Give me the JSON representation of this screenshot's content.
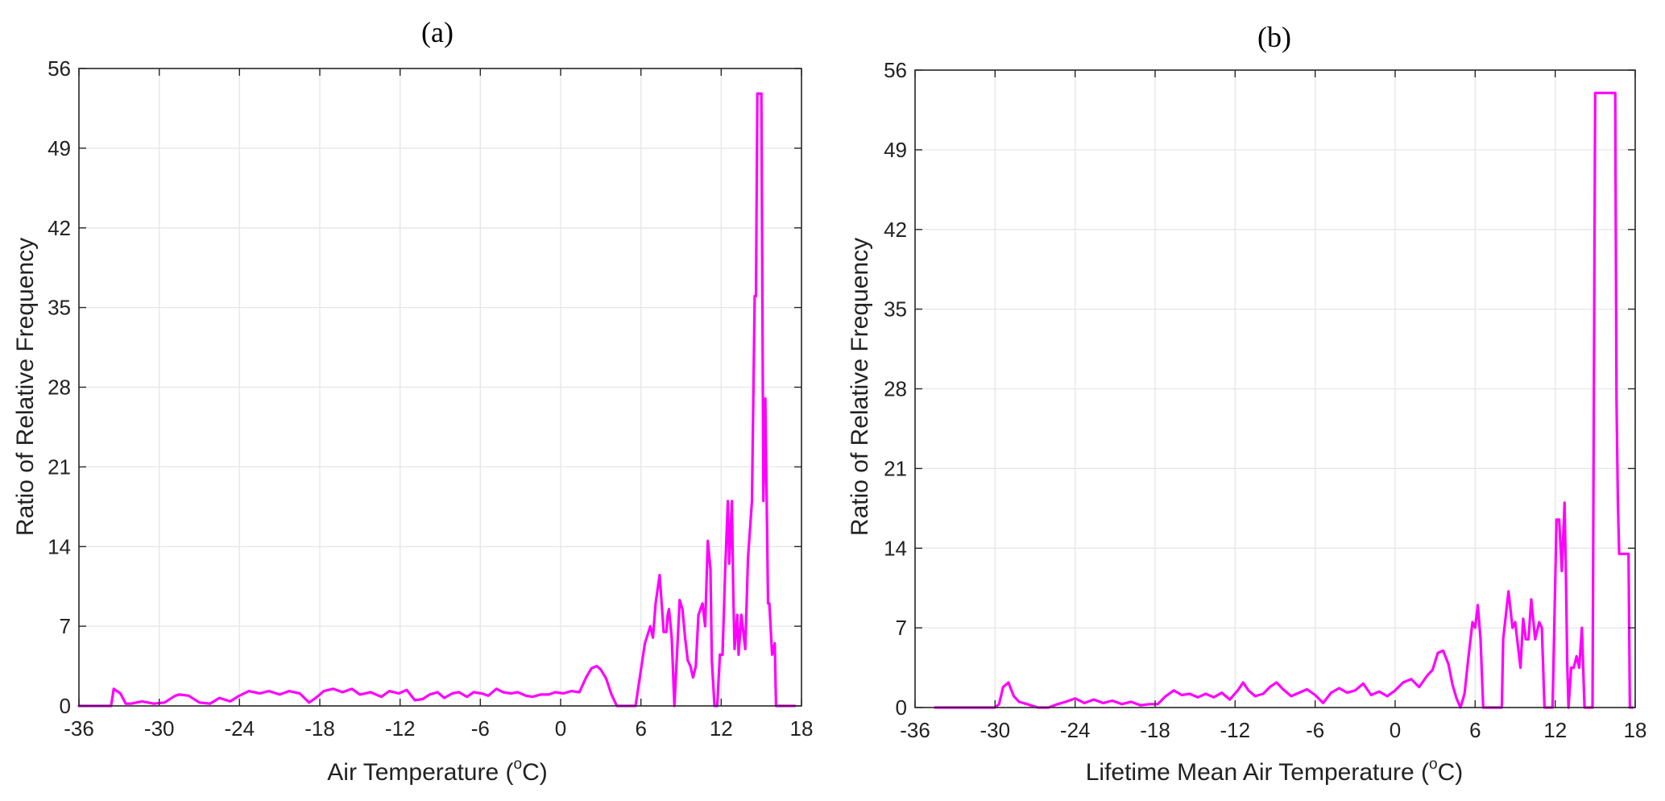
{
  "chart_data": [
    {
      "type": "line",
      "title": "(a)",
      "xlabel": "Air Temperature",
      "xlabel_unit": "(oC)",
      "ylabel": "Ratio of Relative Frequency",
      "xlim": [
        -36,
        18
      ],
      "ylim": [
        0,
        56
      ],
      "xticks": [
        -36,
        -30,
        -24,
        -18,
        -12,
        -6,
        0,
        6,
        12,
        18
      ],
      "yticks": [
        0,
        7,
        14,
        21,
        28,
        35,
        42,
        49,
        56
      ],
      "grid": true,
      "color": "#ff00ff",
      "series": [
        {
          "x": [
            -36,
            -33.6,
            -33.4,
            -32.9,
            -32.5,
            -32.1,
            -31.3,
            -30.4,
            -29.6,
            -28.8,
            -28.5,
            -27.8,
            -27.0,
            -26.2,
            -25.5,
            -24.7,
            -24.0,
            -23.3,
            -22.5,
            -21.8,
            -21.0,
            -20.3,
            -19.5,
            -18.8,
            -18.3,
            -17.7,
            -17.0,
            -16.3,
            -15.6,
            -15.0,
            -14.2,
            -13.4,
            -12.8,
            -12.1,
            -11.5,
            -10.9,
            -10.3,
            -9.8,
            -9.2,
            -8.7,
            -8.1,
            -7.6,
            -7.0,
            -6.5,
            -5.9,
            -5.4,
            -4.8,
            -4.3,
            -3.7,
            -3.2,
            -2.6,
            -2.1,
            -1.5,
            -0.9,
            -0.4,
            0.2,
            0.8,
            1.4,
            1.9,
            2.3,
            2.7,
            3.0,
            3.4,
            3.8,
            4.2,
            4.6,
            5.0,
            5.3,
            5.6,
            6.3,
            6.7,
            6.9,
            7.1,
            7.4,
            7.7,
            7.9,
            8.0,
            8.1,
            8.3,
            8.5,
            8.9,
            9.1,
            9.3,
            9.5,
            9.7,
            9.9,
            10.1,
            10.3,
            10.6,
            10.8,
            11.0,
            11.2,
            11.3,
            11.5,
            11.7,
            11.9,
            12.1,
            12.3,
            12.5,
            12.6,
            12.8,
            12.9,
            13.0,
            13.2,
            13.3,
            13.5,
            13.8,
            14.0,
            14.3,
            14.5,
            14.6,
            14.7,
            14.8,
            14.9,
            15.0,
            15.15,
            15.3,
            15.4,
            15.5,
            15.6,
            15.8,
            16.0,
            16.1,
            16.2,
            16.3,
            16.6,
            17.0,
            17.5
          ],
          "y": [
            0,
            0,
            1.5,
            1.1,
            0.2,
            0.2,
            0.4,
            0.2,
            0.3,
            0.9,
            1.0,
            0.9,
            0.3,
            0.2,
            0.7,
            0.4,
            0.9,
            1.3,
            1.1,
            1.3,
            1.0,
            1.3,
            1.1,
            0.3,
            0.7,
            1.3,
            1.5,
            1.2,
            1.5,
            1.0,
            1.2,
            0.8,
            1.3,
            1.1,
            1.4,
            0.5,
            0.6,
            1.0,
            1.2,
            0.7,
            1.1,
            1.2,
            0.8,
            1.2,
            1.1,
            0.9,
            1.5,
            1.2,
            1.1,
            1.2,
            0.9,
            0.8,
            1.0,
            1.0,
            1.2,
            1.1,
            1.3,
            1.2,
            2.5,
            3.3,
            3.5,
            3.2,
            2.4,
            1.0,
            0,
            0,
            0,
            0,
            0,
            5.5,
            7.0,
            6.0,
            9.0,
            11.5,
            6.5,
            6.5,
            8.0,
            8.5,
            6.0,
            0,
            9.3,
            8.5,
            6.0,
            4.0,
            3.5,
            2.5,
            3.5,
            8.0,
            9.0,
            7.0,
            14.5,
            12.0,
            4.0,
            0,
            0,
            4.5,
            4.5,
            12.0,
            18.0,
            12.5,
            18.0,
            10.0,
            5.0,
            8.0,
            4.5,
            8.0,
            5.0,
            13.0,
            18.0,
            36.0,
            36.0,
            53.8,
            53.8,
            53.8,
            53.8,
            18.0,
            27.0,
            18.0,
            9.0,
            9.0,
            4.5,
            5.5,
            0,
            0,
            0,
            0,
            0,
            0
          ]
        }
      ]
    },
    {
      "type": "line",
      "title": "(b)",
      "xlabel": "Lifetime Mean Air Temperature",
      "xlabel_unit": "(oC)",
      "ylabel": "Ratio of Relative Frequency",
      "xlim": [
        -36,
        18
      ],
      "ylim": [
        0,
        56
      ],
      "xticks": [
        -36,
        -30,
        -24,
        -18,
        -12,
        -6,
        0,
        6,
        12,
        18
      ],
      "yticks": [
        0,
        7,
        14,
        21,
        28,
        35,
        42,
        49,
        56
      ],
      "grid": true,
      "color": "#ff00ff",
      "series": [
        {
          "x": [
            -34.5,
            -30.0,
            -29.7,
            -29.4,
            -29.0,
            -28.6,
            -28.2,
            -27.6,
            -26.8,
            -26.0,
            -25.3,
            -24.7,
            -24.0,
            -23.3,
            -22.6,
            -21.9,
            -21.2,
            -20.5,
            -19.8,
            -19.1,
            -18.4,
            -17.8,
            -17.2,
            -16.6,
            -16.0,
            -15.4,
            -14.8,
            -14.2,
            -13.6,
            -13.0,
            -12.4,
            -11.8,
            -11.4,
            -11.0,
            -10.5,
            -9.9,
            -9.4,
            -8.9,
            -8.4,
            -7.8,
            -7.2,
            -6.6,
            -6.0,
            -5.4,
            -4.8,
            -4.2,
            -3.6,
            -3.0,
            -2.4,
            -1.8,
            -1.2,
            -0.6,
            0.0,
            0.6,
            1.2,
            1.8,
            2.4,
            2.8,
            3.2,
            3.6,
            4.0,
            4.3,
            4.6,
            4.9,
            5.2,
            5.5,
            5.8,
            6.0,
            6.2,
            6.4,
            6.6,
            7.0,
            7.4,
            8.0,
            8.1,
            8.5,
            8.8,
            9.0,
            9.2,
            9.4,
            9.6,
            9.8,
            10.0,
            10.2,
            10.5,
            10.8,
            11.0,
            11.2,
            11.5,
            11.8,
            12.0,
            12.1,
            12.3,
            12.5,
            12.7,
            12.8,
            12.9,
            13.0,
            13.2,
            13.4,
            13.6,
            13.8,
            14.0,
            14.2,
            14.5,
            14.7,
            14.8,
            15.0,
            15.5,
            16.0,
            16.5,
            16.6,
            16.7,
            16.8,
            16.9,
            17.0,
            17.5,
            17.6,
            17.8
          ],
          "y": [
            0,
            0,
            0.3,
            1.8,
            2.2,
            1.0,
            0.5,
            0.3,
            0,
            0,
            0.3,
            0.5,
            0.8,
            0.4,
            0.7,
            0.4,
            0.6,
            0.3,
            0.5,
            0.2,
            0.3,
            0.3,
            1.0,
            1.5,
            1.1,
            1.2,
            0.9,
            1.2,
            0.9,
            1.3,
            0.7,
            1.5,
            2.2,
            1.5,
            1.0,
            1.2,
            1.8,
            2.2,
            1.6,
            1.0,
            1.3,
            1.6,
            1.1,
            0.4,
            1.3,
            1.7,
            1.3,
            1.5,
            2.1,
            1.1,
            1.4,
            1.0,
            1.5,
            2.2,
            2.5,
            1.8,
            2.8,
            3.3,
            4.8,
            5.0,
            3.8,
            2.0,
            0.8,
            0,
            1.2,
            4.5,
            7.5,
            7.0,
            9.0,
            6.0,
            0,
            0,
            0,
            0,
            6.0,
            10.2,
            7.0,
            7.5,
            5.5,
            3.5,
            7.8,
            6.0,
            6.0,
            9.5,
            6.0,
            7.5,
            7.0,
            0,
            0,
            0,
            11.0,
            16.5,
            16.5,
            12.0,
            18.0,
            12.0,
            4.0,
            0,
            3.5,
            3.5,
            4.5,
            3.5,
            7.0,
            0,
            0,
            0,
            0,
            54.0,
            54.0,
            54.0,
            54.0,
            27.0,
            18.0,
            13.5,
            13.5,
            13.5,
            13.5,
            0,
            0
          ]
        }
      ]
    }
  ]
}
